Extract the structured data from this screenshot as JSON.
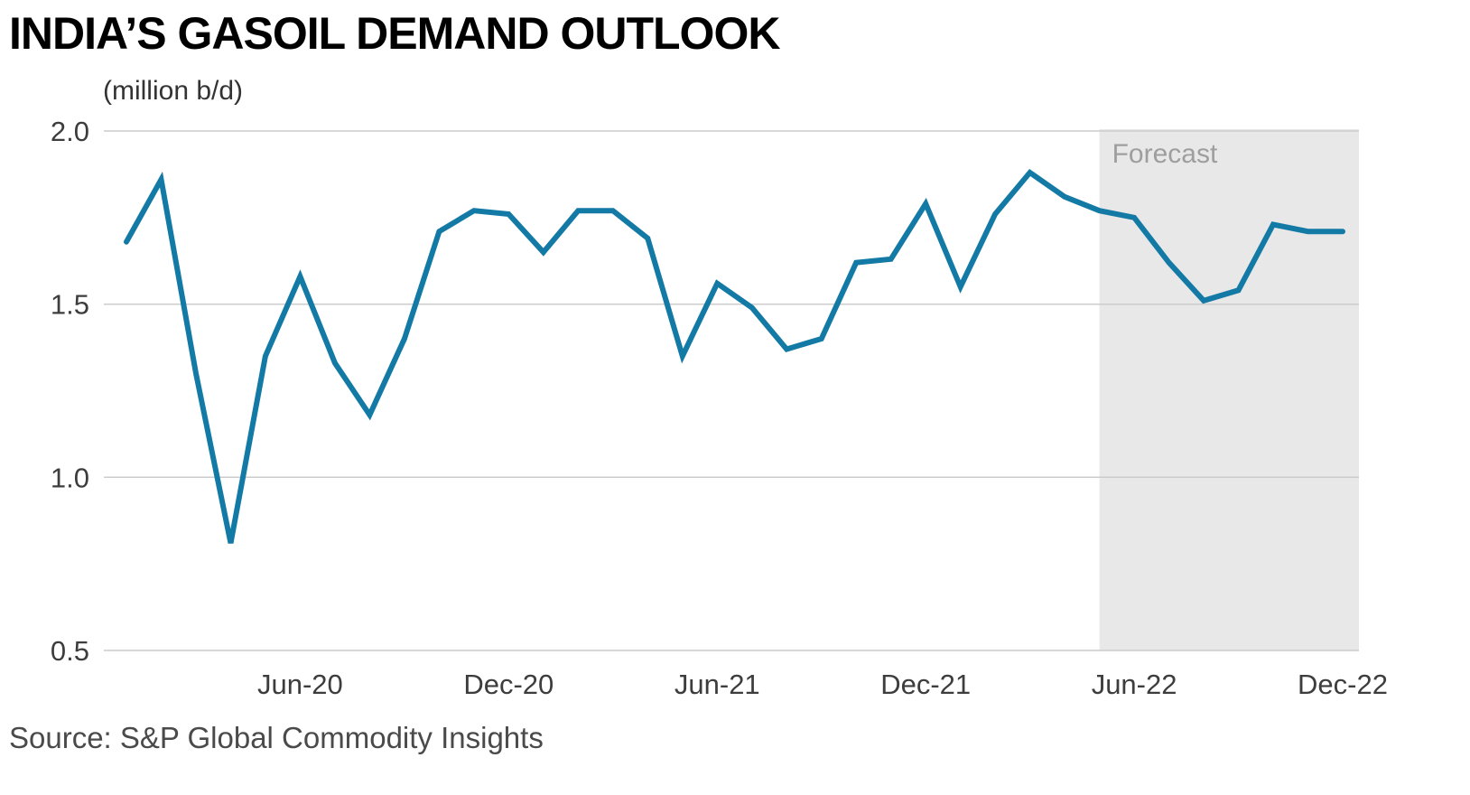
{
  "chart": {
    "title": "INDIA’S GASOIL DEMAND OUTLOOK",
    "subtitle": "(million b/d)",
    "source": "Source: S&P Global Commodity Insights",
    "forecast_label": "Forecast"
  },
  "chart_data": {
    "type": "line",
    "title": "INDIA’S GASOIL DEMAND OUTLOOK",
    "ylabel": "(million b/d)",
    "x": [
      "Jan-20",
      "Feb-20",
      "Mar-20",
      "Apr-20",
      "May-20",
      "Jun-20",
      "Jul-20",
      "Aug-20",
      "Sep-20",
      "Oct-20",
      "Nov-20",
      "Dec-20",
      "Jan-21",
      "Feb-21",
      "Mar-21",
      "Apr-21",
      "May-21",
      "Jun-21",
      "Jul-21",
      "Aug-21",
      "Sep-21",
      "Oct-21",
      "Nov-21",
      "Dec-21",
      "Jan-22",
      "Feb-22",
      "Mar-22",
      "Apr-22",
      "May-22",
      "Jun-22",
      "Jul-22",
      "Aug-22",
      "Sep-22",
      "Oct-22",
      "Nov-22",
      "Dec-22"
    ],
    "values": [
      1.68,
      1.86,
      1.3,
      0.81,
      1.35,
      1.58,
      1.33,
      1.18,
      1.4,
      1.71,
      1.77,
      1.76,
      1.65,
      1.77,
      1.77,
      1.69,
      1.35,
      1.56,
      1.49,
      1.37,
      1.4,
      1.62,
      1.63,
      1.79,
      1.55,
      1.76,
      1.88,
      1.81,
      1.77,
      1.75,
      1.62,
      1.51,
      1.54,
      1.73,
      1.71,
      1.71
    ],
    "series_name": "India gasoil demand (million b/d)",
    "x_tick_labels": [
      "Jun-20",
      "Dec-20",
      "Jun-21",
      "Dec-21",
      "Jun-22",
      "Dec-22"
    ],
    "x_tick_indices": [
      5,
      11,
      17,
      23,
      29,
      35
    ],
    "y_ticks": [
      2.0,
      1.5,
      1.0,
      0.5
    ],
    "ylim": [
      0.5,
      2.0
    ],
    "grid": "horizontal",
    "forecast_start_index": 28,
    "forecast_label": "Forecast",
    "line_color": "#1379a5",
    "forecast_band_color": "#e8e8e8",
    "grid_color": "#cccccc",
    "axis_label_color": "#3d3d3d",
    "forecast_label_color": "#9e9e9e"
  }
}
